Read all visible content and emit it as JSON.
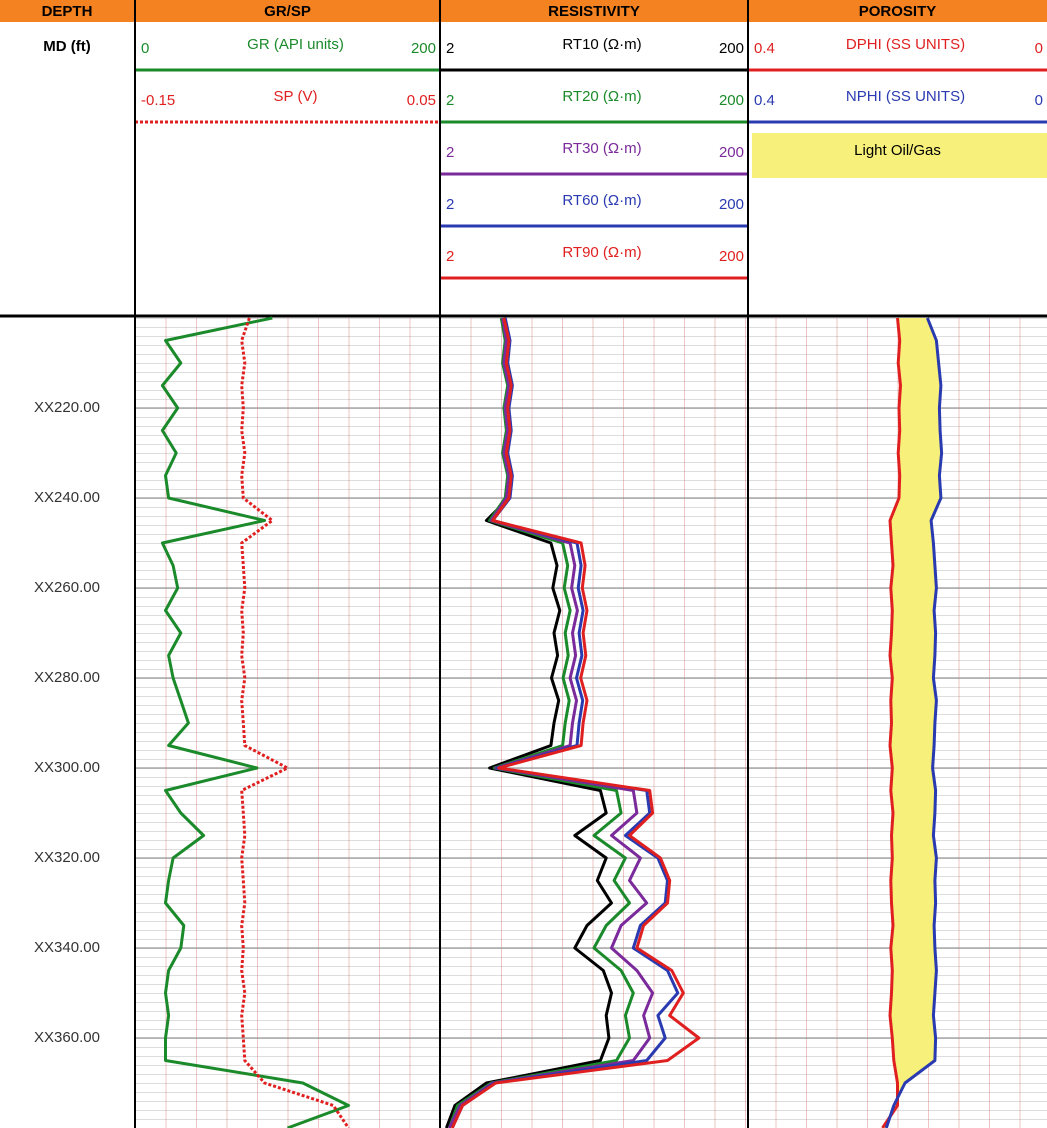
{
  "chart_data": {
    "type": "well-log",
    "depth_header": "DEPTH",
    "depth_label": "MD (ft)",
    "x": [
      200,
      205,
      210,
      215,
      220,
      225,
      230,
      235,
      240,
      245,
      250,
      255,
      260,
      265,
      270,
      275,
      280,
      285,
      290,
      295,
      300,
      305,
      310,
      315,
      320,
      325,
      330,
      335,
      340,
      345,
      350,
      355,
      360,
      365,
      370,
      375,
      380
    ],
    "ylim": [
      200,
      380
    ],
    "yticks": [
      {
        "value": 220,
        "label": "XX220.00"
      },
      {
        "value": 240,
        "label": "XX240.00"
      },
      {
        "value": 260,
        "label": "XX260.00"
      },
      {
        "value": 280,
        "label": "XX280.00"
      },
      {
        "value": 300,
        "label": "XX300.00"
      },
      {
        "value": 320,
        "label": "XX320.00"
      },
      {
        "value": 340,
        "label": "XX340.00"
      },
      {
        "value": 360,
        "label": "XX360.00"
      }
    ],
    "grid": true,
    "tracks": [
      {
        "title": "GR/SP",
        "series": [
          {
            "name": "GR (API units)",
            "color": "#1a8a2a",
            "xlim": [
              0,
              200
            ],
            "log": false,
            "values": [
              90,
              20,
              30,
              18,
              28,
              18,
              27,
              20,
              22,
              85,
              18,
              25,
              28,
              20,
              30,
              22,
              25,
              30,
              35,
              22,
              80,
              20,
              30,
              45,
              25,
              22,
              20,
              32,
              30,
              22,
              20,
              22,
              20,
              20,
              110,
              140,
              100
            ]
          },
          {
            "name": "SP (V)",
            "color": "#e02020",
            "xlim": [
              -0.15,
              0.05
            ],
            "log": false,
            "dashed": true,
            "values": [
              -0.075,
              -0.08,
              -0.078,
              -0.08,
              -0.079,
              -0.08,
              -0.078,
              -0.08,
              -0.079,
              -0.06,
              -0.08,
              -0.079,
              -0.078,
              -0.08,
              -0.079,
              -0.08,
              -0.078,
              -0.08,
              -0.079,
              -0.078,
              -0.05,
              -0.08,
              -0.079,
              -0.078,
              -0.08,
              -0.079,
              -0.078,
              -0.08,
              -0.079,
              -0.08,
              -0.078,
              -0.08,
              -0.079,
              -0.078,
              -0.065,
              -0.02,
              -0.01
            ]
          }
        ]
      },
      {
        "title": "RESISTIVITY",
        "series": [
          {
            "name": "RT10 (Ω·m)",
            "color": "#000000",
            "xlim": [
              2,
              200
            ],
            "log": true,
            "values": [
              5.2,
              5.6,
              5.4,
              5.8,
              5.5,
              5.7,
              5.4,
              5.8,
              5.6,
              4.0,
              10.5,
              11.5,
              10.8,
              12,
              11,
              11.6,
              10.6,
              11.8,
              11,
              10.5,
              4.2,
              22,
              24,
              15,
              24,
              21,
              26,
              18,
              15,
              23,
              26,
              24,
              25,
              22,
              4.0,
              2.5,
              2.2
            ]
          },
          {
            "name": "RT20 (Ω·m)",
            "color": "#1a8a2a",
            "xlim": [
              2,
              200
            ],
            "log": true,
            "values": [
              5.0,
              5.3,
              5.1,
              5.5,
              5.2,
              5.4,
              5.1,
              5.5,
              5.3,
              4.2,
              12.5,
              13.5,
              12.8,
              14,
              13,
              13.6,
              12.6,
              13.8,
              13,
              12.5,
              4.5,
              28,
              30,
              20,
              32,
              27,
              34,
              24,
              20,
              30,
              36,
              32,
              34,
              28,
              4.3,
              2.6,
              2.3
            ]
          },
          {
            "name": "RT30 (Ω·m)",
            "color": "#7a2a9a",
            "xlim": [
              2,
              200
            ],
            "log": true,
            "values": [
              5.1,
              5.4,
              5.2,
              5.6,
              5.3,
              5.5,
              5.2,
              5.6,
              5.4,
              4.3,
              14,
              15,
              14.3,
              15.6,
              14.5,
              15.2,
              14,
              15.4,
              14.5,
              14,
              4.6,
              36,
              38,
              26,
              40,
              34,
              44,
              30,
              26,
              38,
              48,
              42,
              46,
              36,
              4.4,
              2.7,
              2.3
            ]
          },
          {
            "name": "RT60 (Ω·m)",
            "color": "#2a3ab0",
            "xlim": [
              2,
              200
            ],
            "log": true,
            "values": [
              5.3,
              5.7,
              5.5,
              5.9,
              5.6,
              5.8,
              5.5,
              5.9,
              5.7,
              4.4,
              15.5,
              16.5,
              15.8,
              17,
              16,
              16.7,
              15.4,
              16.9,
              16,
              15.5,
              4.7,
              44,
              46,
              32,
              52,
              60,
              58,
              40,
              36,
              60,
              70,
              52,
              58,
              44,
              4.5,
              2.8,
              2.4
            ]
          },
          {
            "name": "RT90 (Ω·m)",
            "color": "#e02020",
            "xlim": [
              2,
              200
            ],
            "log": true,
            "values": [
              5.2,
              5.6,
              5.4,
              5.8,
              5.5,
              5.7,
              5.4,
              5.8,
              5.6,
              4.4,
              16.5,
              17.5,
              16.8,
              18,
              17,
              17.7,
              16.4,
              18,
              17,
              16.5,
              4.8,
              46,
              48,
              34,
              54,
              62,
              60,
              42,
              38,
              64,
              76,
              62,
              96,
              60,
              4.6,
              2.8,
              2.4
            ]
          }
        ]
      },
      {
        "title": "POROSITY",
        "series": [
          {
            "name": "DPHI (SS UNITS)",
            "color": "#e02020",
            "xlim": [
              0.4,
              0
            ],
            "log": false,
            "values": [
              0.2,
              0.197,
              0.199,
              0.196,
              0.198,
              0.197,
              0.199,
              0.197,
              0.198,
              0.21,
              0.208,
              0.206,
              0.209,
              0.207,
              0.208,
              0.21,
              0.207,
              0.209,
              0.208,
              0.21,
              0.207,
              0.209,
              0.206,
              0.208,
              0.207,
              0.209,
              0.208,
              0.206,
              0.209,
              0.207,
              0.208,
              0.21,
              0.207,
              0.205,
              0.2,
              0.2,
              0.22
            ]
          },
          {
            "name": "NPHI (SS UNITS)",
            "color": "#2a3ab0",
            "xlim": [
              0.4,
              0
            ],
            "log": false,
            "values": [
              0.16,
              0.148,
              0.145,
              0.142,
              0.144,
              0.143,
              0.141,
              0.144,
              0.142,
              0.155,
              0.152,
              0.15,
              0.148,
              0.151,
              0.149,
              0.15,
              0.152,
              0.148,
              0.15,
              0.151,
              0.153,
              0.149,
              0.15,
              0.152,
              0.148,
              0.15,
              0.149,
              0.151,
              0.15,
              0.148,
              0.15,
              0.152,
              0.149,
              0.15,
              0.19,
              0.205,
              0.215
            ]
          }
        ],
        "fill": {
          "label": "Light Oil/Gas",
          "color": "#f7f07a"
        }
      }
    ]
  }
}
